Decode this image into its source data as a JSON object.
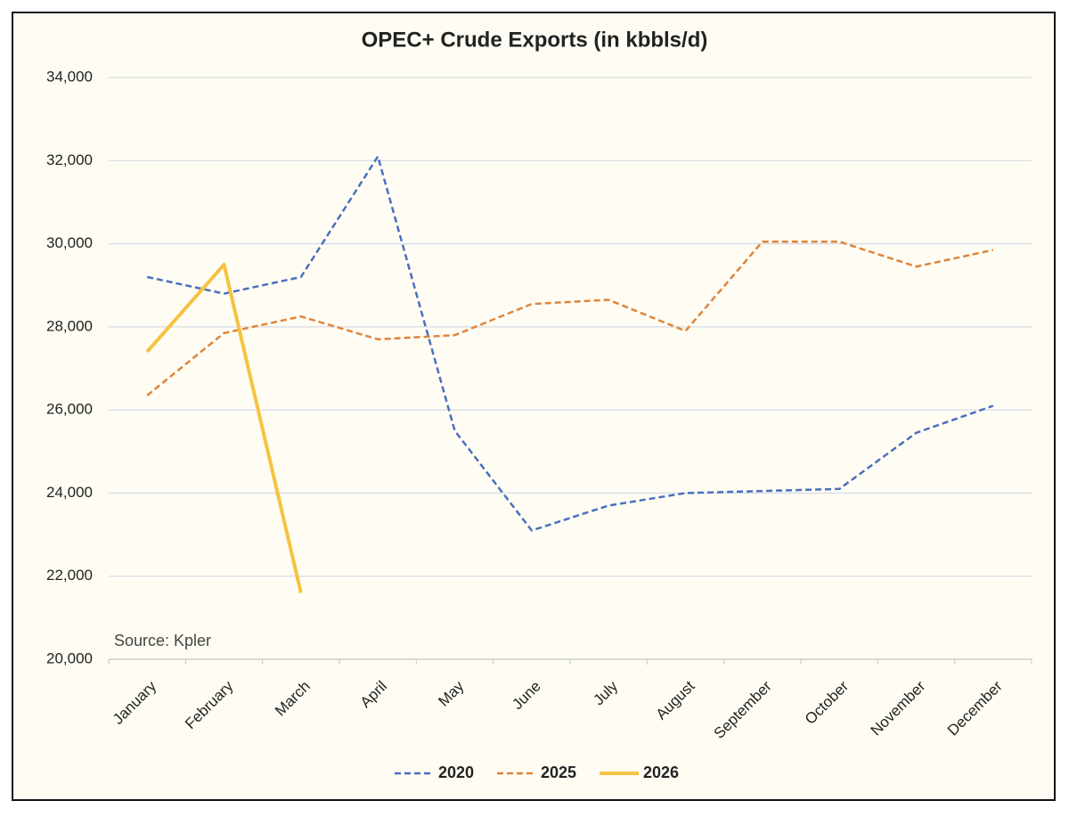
{
  "chart_data": {
    "type": "line",
    "title": "OPEC+ Crude Exports (in kbbls/d)",
    "annotation": "Source: Kpler",
    "categories": [
      "January",
      "February",
      "March",
      "April",
      "May",
      "June",
      "July",
      "August",
      "September",
      "October",
      "November",
      "December"
    ],
    "series": [
      {
        "name": "2020",
        "color": "#4a6fbf",
        "line_style": "dashed",
        "values": [
          29200,
          28800,
          29200,
          32100,
          25500,
          23100,
          23700,
          24000,
          24050,
          24100,
          25450,
          26100
        ]
      },
      {
        "name": "2025",
        "color": "#e0843a",
        "line_style": "dashed",
        "values": [
          26350,
          27850,
          28250,
          27700,
          27800,
          28550,
          28650,
          27900,
          30050,
          30050,
          29450,
          29850
        ]
      },
      {
        "name": "2026",
        "color": "#f5c242",
        "line_style": "solid",
        "values": [
          27400,
          29500,
          21600,
          null,
          null,
          null,
          null,
          null,
          null,
          null,
          null,
          null
        ]
      }
    ],
    "ylim": [
      20000,
      34000
    ],
    "yticks": [
      {
        "value": 20000,
        "label": "20,000"
      },
      {
        "value": 22000,
        "label": "22,000"
      },
      {
        "value": 24000,
        "label": "24,000"
      },
      {
        "value": 26000,
        "label": "26,000"
      },
      {
        "value": 28000,
        "label": "28,000"
      },
      {
        "value": 30000,
        "label": "30,000"
      },
      {
        "value": 32000,
        "label": "32,000"
      },
      {
        "value": 34000,
        "label": "34,000"
      }
    ],
    "grid": true,
    "legend": "bottom"
  }
}
